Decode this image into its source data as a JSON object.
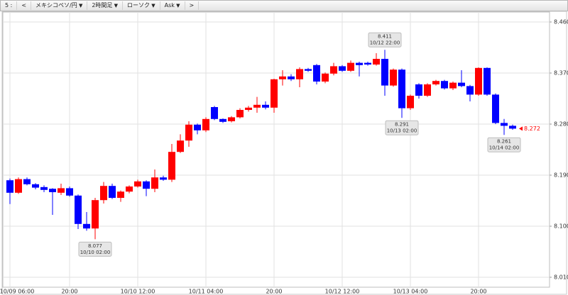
{
  "toolbar": {
    "items": [
      "5 :",
      "<",
      "メキシコペソ/円",
      "2時間足",
      "ローソク",
      "Ask",
      ">"
    ]
  },
  "chart_data": {
    "type": "candlestick",
    "categories": [
      "10/09 06:00",
      null,
      null,
      null,
      null,
      null,
      null,
      "20:00",
      null,
      null,
      null,
      null,
      null,
      null,
      null,
      "10/10 12:00",
      null,
      null,
      null,
      null,
      null,
      null,
      null,
      "10/11 04:00",
      null,
      null,
      null,
      null,
      null,
      null,
      null,
      "20:00",
      null,
      null,
      null,
      null,
      null,
      null,
      null,
      "10/12 12:00",
      null,
      null,
      null,
      null,
      null,
      null,
      null,
      "10/13 04:00",
      null,
      null,
      null,
      null,
      null,
      null,
      null,
      "20:00",
      null,
      null,
      null,
      null
    ],
    "open": [
      8.181,
      8.159,
      8.183,
      8.174,
      8.169,
      8.166,
      8.159,
      8.167,
      8.154,
      8.104,
      8.096,
      8.146,
      8.171,
      8.15,
      8.161,
      8.17,
      8.179,
      8.166,
      8.186,
      8.182,
      8.231,
      8.251,
      8.279,
      8.269,
      8.31,
      8.289,
      8.285,
      8.292,
      8.305,
      8.309,
      8.314,
      8.309,
      8.359,
      8.364,
      8.359,
      8.377,
      8.384,
      8.355,
      8.369,
      8.382,
      8.374,
      8.388,
      8.388,
      8.385,
      8.395,
      8.348,
      8.376,
      8.308,
      8.35,
      8.33,
      8.35,
      8.356,
      8.343,
      8.353,
      8.347,
      8.332,
      8.379,
      8.332,
      8.282,
      8.277
    ],
    "high": [
      8.184,
      8.186,
      8.186,
      8.176,
      8.172,
      8.167,
      8.175,
      8.17,
      8.156,
      8.125,
      8.15,
      8.178,
      8.175,
      8.163,
      8.172,
      8.182,
      8.181,
      8.2,
      8.189,
      8.245,
      8.262,
      8.285,
      8.281,
      8.292,
      8.312,
      8.29,
      8.294,
      8.308,
      8.312,
      8.328,
      8.32,
      8.36,
      8.375,
      8.368,
      8.38,
      8.379,
      8.386,
      8.371,
      8.388,
      8.384,
      8.392,
      8.39,
      8.39,
      8.405,
      8.411,
      8.378,
      8.378,
      8.332,
      8.352,
      8.352,
      8.358,
      8.358,
      8.355,
      8.375,
      8.349,
      8.38,
      8.38,
      8.334,
      8.289,
      8.279
    ],
    "low": [
      8.139,
      8.157,
      8.172,
      8.165,
      8.16,
      8.12,
      8.155,
      8.152,
      8.095,
      8.092,
      8.077,
      8.14,
      8.148,
      8.143,
      8.158,
      8.168,
      8.153,
      8.16,
      8.18,
      8.178,
      8.229,
      8.24,
      8.262,
      8.266,
      8.287,
      8.282,
      8.283,
      8.29,
      8.302,
      8.3,
      8.306,
      8.3,
      8.348,
      8.356,
      8.345,
      8.372,
      8.35,
      8.352,
      8.366,
      8.372,
      8.372,
      8.364,
      8.383,
      8.383,
      8.33,
      8.346,
      8.291,
      8.305,
      8.325,
      8.328,
      8.348,
      8.341,
      8.34,
      8.345,
      8.32,
      8.33,
      8.33,
      8.28,
      8.261,
      8.27
    ],
    "close": [
      8.159,
      8.183,
      8.174,
      8.168,
      8.164,
      8.16,
      8.167,
      8.154,
      8.104,
      8.096,
      8.146,
      8.171,
      8.15,
      8.161,
      8.17,
      8.179,
      8.166,
      8.186,
      8.182,
      8.231,
      8.251,
      8.279,
      8.269,
      8.289,
      8.289,
      8.284,
      8.292,
      8.305,
      8.309,
      8.314,
      8.309,
      8.359,
      8.364,
      8.359,
      8.377,
      8.374,
      8.355,
      8.369,
      8.382,
      8.374,
      8.388,
      8.384,
      8.385,
      8.395,
      8.348,
      8.376,
      8.308,
      8.33,
      8.33,
      8.35,
      8.356,
      8.343,
      8.353,
      8.347,
      8.332,
      8.379,
      8.332,
      8.282,
      8.277,
      8.272
    ],
    "up_color": "#ff0000",
    "down_color": "#0000ff",
    "ylim": [
      7.9925,
      8.4775
    ],
    "yticks": [
      {
        "value": 8.46,
        "label": "8.460"
      },
      {
        "value": 8.37,
        "label": "8.370"
      },
      {
        "value": 8.28,
        "label": "8.280"
      },
      {
        "value": 8.19,
        "label": "8.190"
      },
      {
        "value": 8.1,
        "label": "8.100"
      },
      {
        "value": 8.01,
        "label": "8.010"
      }
    ],
    "grid": true,
    "annotations": [
      {
        "value": 8.077,
        "time": "10/10 02:00"
      },
      {
        "value": 8.411,
        "time": "10/12 22:00"
      },
      {
        "value": 8.291,
        "time": "10/13 02:00"
      },
      {
        "value": 8.261,
        "time": "10/14 02:00"
      }
    ],
    "last_price": 8.272,
    "last_price_color": "#ff0000"
  }
}
